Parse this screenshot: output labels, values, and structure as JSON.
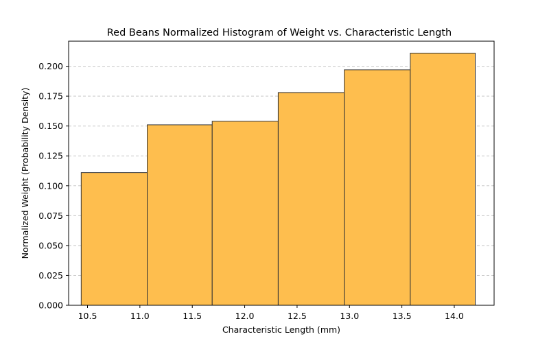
{
  "chart_data": {
    "type": "bar",
    "title": "Red Beans Normalized Histogram of Weight vs. Characteristic Length",
    "xlabel": "Characteristic Length (mm)",
    "ylabel": "Normalized Weight (Probability Density)",
    "xlim": [
      10.32,
      14.38
    ],
    "ylim": [
      0,
      0.221
    ],
    "grid": "y-dashed",
    "bar_color": "#febe4e",
    "edge_color": "#333333",
    "bins": [
      {
        "x0": 10.44,
        "x1": 11.07,
        "value": 0.111
      },
      {
        "x0": 11.07,
        "x1": 11.69,
        "value": 0.151
      },
      {
        "x0": 11.69,
        "x1": 12.32,
        "value": 0.154
      },
      {
        "x0": 12.32,
        "x1": 12.95,
        "value": 0.178
      },
      {
        "x0": 12.95,
        "x1": 13.58,
        "value": 0.197
      },
      {
        "x0": 13.58,
        "x1": 14.2,
        "value": 0.211
      }
    ],
    "xticks": [
      {
        "value": 10.5,
        "label": "10.5"
      },
      {
        "value": 11.0,
        "label": "11.0"
      },
      {
        "value": 11.5,
        "label": "11.5"
      },
      {
        "value": 12.0,
        "label": "12.0"
      },
      {
        "value": 12.5,
        "label": "12.5"
      },
      {
        "value": 13.0,
        "label": "13.0"
      },
      {
        "value": 13.5,
        "label": "13.5"
      },
      {
        "value": 14.0,
        "label": "14.0"
      }
    ],
    "yticks": [
      {
        "value": 0.0,
        "label": "0.000"
      },
      {
        "value": 0.025,
        "label": "0.025"
      },
      {
        "value": 0.05,
        "label": "0.050"
      },
      {
        "value": 0.075,
        "label": "0.075"
      },
      {
        "value": 0.1,
        "label": "0.100"
      },
      {
        "value": 0.125,
        "label": "0.125"
      },
      {
        "value": 0.15,
        "label": "0.150"
      },
      {
        "value": 0.175,
        "label": "0.175"
      },
      {
        "value": 0.2,
        "label": "0.200"
      }
    ]
  }
}
